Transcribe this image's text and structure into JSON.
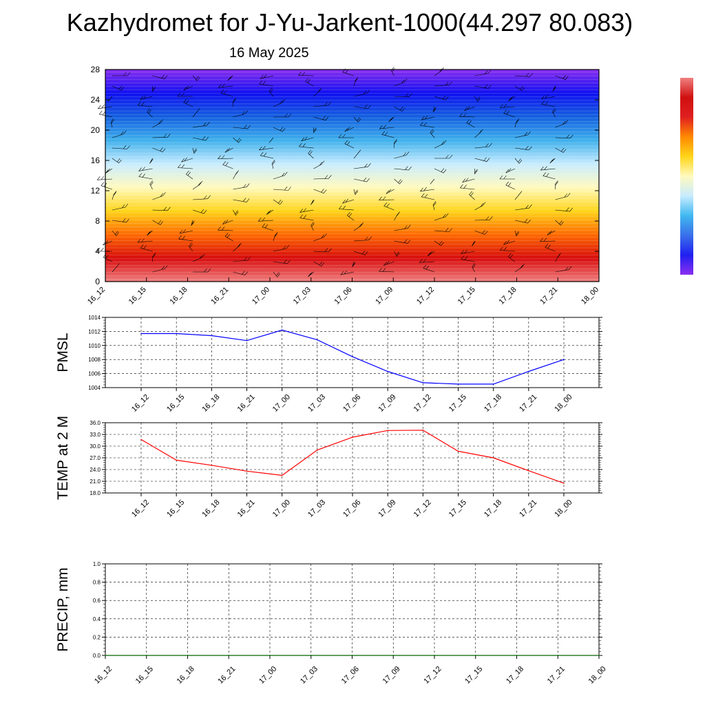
{
  "header": {
    "title": "Kazhydromet for J-Yu-Jarkent-1000(44.297 80.083)",
    "date": "16 May 2025"
  },
  "time_labels": [
    "16_12",
    "16_15",
    "16_18",
    "16_21",
    "17_00",
    "17_03",
    "17_06",
    "17_09",
    "17_12",
    "17_15",
    "17_18",
    "17_21",
    "18_00"
  ],
  "colors": {
    "temp_profile": [
      "#f07f7f",
      "#d80d0d",
      "#ff6a00",
      "#ffd51a",
      "#fffabf",
      "#c8ecff",
      "#3fb0ec",
      "#1460e0",
      "#1010f0",
      "#8a2ef0"
    ],
    "colorbar": [
      "#8a2ef0",
      "#2020f0",
      "#3a70ea",
      "#40b8f0",
      "#c8ecff",
      "#fffabf",
      "#ffd51a",
      "#ff8a00",
      "#e02020",
      "#d01010",
      "#f08080"
    ],
    "pmsl_line": "#0000ff",
    "temp_line": "#ff0000",
    "precip_line": "#006400"
  },
  "chart_data": [
    {
      "type": "heatmap",
      "description_of_axes": "",
      "xlabel": "",
      "ylabel": "",
      "categories": [
        "16_12",
        "16_15",
        "16_18",
        "16_21",
        "17_00",
        "17_03",
        "17_06",
        "17_09",
        "17_12",
        "17_15",
        "17_18",
        "17_21",
        "18_00"
      ],
      "ylim": [
        0,
        28
      ],
      "yticks": [
        0,
        4,
        8,
        12,
        16,
        20,
        24,
        28
      ],
      "overlay": "wind barbs",
      "colorbar": "right"
    },
    {
      "type": "line",
      "ylabel": "PMSL",
      "categories": [
        "16_12",
        "16_15",
        "16_18",
        "16_21",
        "17_00",
        "17_03",
        "17_06",
        "17_09",
        "17_12",
        "17_15",
        "17_18",
        "17_21",
        "18_00"
      ],
      "series": [
        {
          "values": [
            1011.7,
            1011.7,
            1011.4,
            1010.7,
            1012.2,
            1010.8,
            1008.4,
            1006.3,
            1004.7,
            1004.5,
            1004.5,
            1006.3,
            1008.0
          ]
        }
      ],
      "ylim": [
        1004,
        1014
      ],
      "yticks": [
        "1004",
        "1006",
        "1008",
        "1010",
        "1012",
        "1014"
      ],
      "grid": true
    },
    {
      "type": "line",
      "ylabel": "TEMP at 2 M",
      "categories": [
        "16_12",
        "16_15",
        "16_18",
        "16_21",
        "17_00",
        "17_03",
        "17_06",
        "17_09",
        "17_12",
        "17_15",
        "17_18",
        "17_21",
        "18_00"
      ],
      "series": [
        {
          "values": [
            31.7,
            26.4,
            25.1,
            23.6,
            22.5,
            29.0,
            32.3,
            34.0,
            34.1,
            28.7,
            27.0,
            23.7,
            20.5
          ]
        }
      ],
      "ylim": [
        18,
        36
      ],
      "yticks": [
        "18.0",
        "21.0",
        "24.0",
        "27.0",
        "30.0",
        "33.0",
        "36.0"
      ],
      "grid": true
    },
    {
      "type": "line",
      "ylabel": "PRECIP, mm",
      "categories": [
        "16_12",
        "16_15",
        "16_18",
        "16_21",
        "17_00",
        "17_03",
        "17_06",
        "17_09",
        "17_12",
        "17_15",
        "17_18",
        "17_21",
        "18_00"
      ],
      "series": [
        {
          "values": [
            0,
            0,
            0,
            0,
            0,
            0,
            0,
            0,
            0,
            0,
            0,
            0,
            0
          ]
        }
      ],
      "ylim": [
        0,
        1
      ],
      "yticks": [
        "0.0",
        "0.2",
        "0.4",
        "0.6",
        "0.8",
        "1.0"
      ],
      "grid": true
    }
  ]
}
